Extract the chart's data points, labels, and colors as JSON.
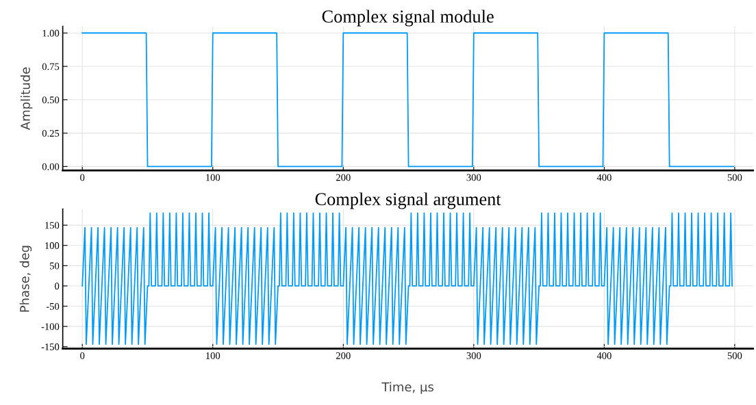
{
  "chart_data": [
    {
      "type": "line",
      "title": "Complex signal module",
      "ylabel": "Amplitude",
      "series": [
        {
          "color": "#009af9",
          "x": [
            0,
            49,
            50,
            99,
            100,
            149,
            150,
            199,
            200,
            249,
            250,
            299,
            300,
            349,
            350,
            399,
            400,
            449,
            450,
            499
          ],
          "values": [
            1,
            1,
            0,
            0,
            1,
            1,
            0,
            0,
            1,
            1,
            0,
            0,
            1,
            1,
            0,
            0,
            1,
            1,
            0,
            0
          ]
        }
      ],
      "xlim": [
        -15,
        514
      ],
      "xticks": [
        0,
        100,
        200,
        300,
        400,
        500
      ],
      "ylim": [
        -0.03,
        1.05
      ],
      "yticks": [
        {
          "value": 0,
          "label": "0.00"
        },
        {
          "value": 0.25,
          "label": "0.25"
        },
        {
          "value": 0.5,
          "label": "0.50"
        },
        {
          "value": 0.75,
          "label": "0.75"
        },
        {
          "value": 1,
          "label": "1.00"
        }
      ],
      "grid": true,
      "marker": "none",
      "line_style": "solid"
    },
    {
      "type": "line",
      "title": "Complex signal argument",
      "ylabel": "Phase, deg",
      "xlabel": "Time, μs",
      "series": [
        {
          "color": "#009af9",
          "x": [
            0,
            2,
            3,
            7,
            8,
            12,
            13,
            17,
            18,
            22,
            23,
            27,
            28,
            32,
            33,
            37,
            38,
            42,
            43,
            47,
            48,
            50,
            51,
            52,
            53,
            56,
            57,
            58,
            61,
            62,
            63,
            66,
            67,
            68,
            71,
            72,
            73,
            76,
            77,
            78,
            81,
            82,
            83,
            86,
            87,
            88,
            91,
            92,
            93,
            96,
            97,
            98,
            100,
            102,
            103,
            107,
            108,
            112,
            113,
            117,
            118,
            122,
            123,
            127,
            128,
            132,
            133,
            137,
            138,
            142,
            143,
            147,
            148,
            150,
            151,
            152,
            153,
            156,
            157,
            158,
            161,
            162,
            163,
            166,
            167,
            168,
            171,
            172,
            173,
            176,
            177,
            178,
            181,
            182,
            183,
            186,
            187,
            188,
            191,
            192,
            193,
            196,
            197,
            198,
            200,
            202,
            203,
            207,
            208,
            212,
            213,
            217,
            218,
            222,
            223,
            227,
            228,
            232,
            233,
            237,
            238,
            242,
            243,
            247,
            248,
            250,
            251,
            252,
            253,
            256,
            257,
            258,
            261,
            262,
            263,
            266,
            267,
            268,
            271,
            272,
            273,
            276,
            277,
            278,
            281,
            282,
            283,
            286,
            287,
            288,
            291,
            292,
            293,
            296,
            297,
            298,
            300,
            302,
            303,
            307,
            308,
            312,
            313,
            317,
            318,
            322,
            323,
            327,
            328,
            332,
            333,
            337,
            338,
            342,
            343,
            347,
            348,
            350,
            351,
            352,
            353,
            356,
            357,
            358,
            361,
            362,
            363,
            366,
            367,
            368,
            371,
            372,
            373,
            376,
            377,
            378,
            381,
            382,
            383,
            386,
            387,
            388,
            391,
            392,
            393,
            396,
            397,
            398,
            400,
            402,
            403,
            407,
            408,
            412,
            413,
            417,
            418,
            422,
            423,
            427,
            428,
            432,
            433,
            437,
            438,
            442,
            443,
            447,
            448,
            450,
            451,
            452,
            453,
            456,
            457,
            458,
            461,
            462,
            463,
            466,
            467,
            468,
            471,
            472,
            473,
            476,
            477,
            478,
            481,
            482,
            483,
            486,
            487,
            488,
            491,
            492,
            493,
            496,
            497,
            498
          ],
          "values": [
            0,
            144,
            -144,
            144,
            -144,
            144,
            -144,
            144,
            -144,
            144,
            -144,
            144,
            -144,
            144,
            -144,
            144,
            -144,
            144,
            -144,
            144,
            -144,
            0,
            0,
            180,
            0,
            0,
            180,
            0,
            0,
            180,
            0,
            0,
            180,
            0,
            0,
            180,
            0,
            0,
            180,
            0,
            0,
            180,
            0,
            0,
            180,
            0,
            0,
            180,
            0,
            0,
            180,
            0,
            0,
            144,
            -144,
            144,
            -144,
            144,
            -144,
            144,
            -144,
            144,
            -144,
            144,
            -144,
            144,
            -144,
            144,
            -144,
            144,
            -144,
            144,
            -144,
            0,
            0,
            180,
            0,
            0,
            180,
            0,
            0,
            180,
            0,
            0,
            180,
            0,
            0,
            180,
            0,
            0,
            180,
            0,
            0,
            180,
            0,
            0,
            180,
            0,
            0,
            180,
            0,
            0,
            180,
            0,
            0,
            144,
            -144,
            144,
            -144,
            144,
            -144,
            144,
            -144,
            144,
            -144,
            144,
            -144,
            144,
            -144,
            144,
            -144,
            144,
            -144,
            144,
            -144,
            0,
            0,
            180,
            0,
            0,
            180,
            0,
            0,
            180,
            0,
            0,
            180,
            0,
            0,
            180,
            0,
            0,
            180,
            0,
            0,
            180,
            0,
            0,
            180,
            0,
            0,
            180,
            0,
            0,
            180,
            0,
            0,
            144,
            -144,
            144,
            -144,
            144,
            -144,
            144,
            -144,
            144,
            -144,
            144,
            -144,
            144,
            -144,
            144,
            -144,
            144,
            -144,
            144,
            -144,
            0,
            0,
            180,
            0,
            0,
            180,
            0,
            0,
            180,
            0,
            0,
            180,
            0,
            0,
            180,
            0,
            0,
            180,
            0,
            0,
            180,
            0,
            0,
            180,
            0,
            0,
            180,
            0,
            0,
            180,
            0,
            0,
            144,
            -144,
            144,
            -144,
            144,
            -144,
            144,
            -144,
            144,
            -144,
            144,
            -144,
            144,
            -144,
            144,
            -144,
            144,
            -144,
            144,
            -144,
            0,
            0,
            180,
            0,
            0,
            180,
            0,
            0,
            180,
            0,
            0,
            180,
            0,
            0,
            180,
            0,
            0,
            180,
            0,
            0,
            180,
            0,
            0,
            180,
            0,
            0,
            180,
            0,
            0,
            180,
            0
          ]
        }
      ],
      "xlim": [
        -15,
        514
      ],
      "xticks": [
        0,
        100,
        200,
        300,
        400,
        500
      ],
      "ylim": [
        -155,
        190
      ],
      "yticks": [
        -150,
        -100,
        -50,
        0,
        50,
        100,
        150
      ],
      "grid": true,
      "marker": "none",
      "line_style": "solid"
    }
  ]
}
